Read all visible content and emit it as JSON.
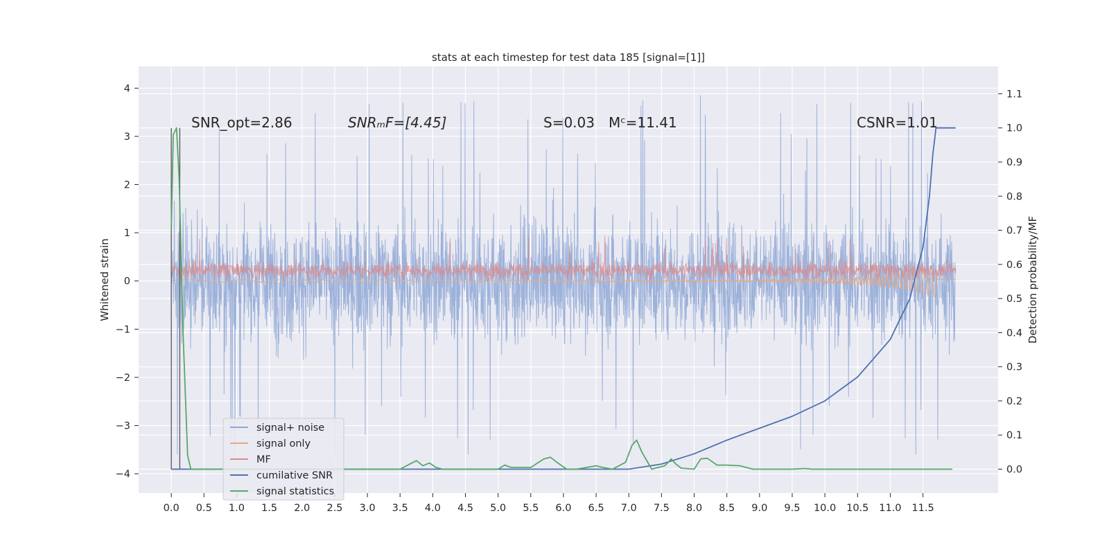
{
  "chart_data": {
    "type": "line",
    "title": "stats at each timestep for test data 185 [signal=[1]]",
    "ylabel_left": "Whitened strain",
    "ylabel_right": "Detection probability/MF",
    "xlim": [
      -0.5,
      12.65
    ],
    "ylim_left": [
      -4.4,
      4.45
    ],
    "ylim_right": [
      -0.07,
      1.18
    ],
    "grid": true,
    "x_ticks": [
      "0.0",
      "0.5",
      "1.0",
      "1.5",
      "2.0",
      "2.5",
      "3.0",
      "3.5",
      "4.0",
      "4.5",
      "5.0",
      "5.5",
      "6.0",
      "6.5",
      "7.0",
      "7.5",
      "8.0",
      "8.5",
      "9.0",
      "9.5",
      "10.0",
      "10.5",
      "11.0",
      "11.5"
    ],
    "y_ticks_left": [
      "4",
      "3",
      "2",
      "1",
      "0",
      "−1",
      "−2",
      "−3",
      "−4"
    ],
    "y_ticks_right": [
      "1.1",
      "1.0",
      "0.9",
      "0.8",
      "0.7",
      "0.6",
      "0.5",
      "0.4",
      "0.3",
      "0.2",
      "0.1",
      "0.0"
    ],
    "annotations": {
      "snr_opt": "SNR_opt=2.86",
      "snr_mf": "SNRₘF=[4.45]",
      "stat": "S=0.03",
      "mc": "Mᶜ=11.41",
      "csnr": "CSNR=1.01"
    },
    "legend": {
      "placement": "lower-left",
      "entries": [
        {
          "label": "signal+ noise",
          "color": "#8fa8d6"
        },
        {
          "label": "signal only",
          "color": "#e0a98a"
        },
        {
          "label": "MF",
          "color": "#d98a8a"
        },
        {
          "label": "cumilative SNR",
          "color": "#4c72b0"
        },
        {
          "label": "signal statistics",
          "color": "#55a868"
        }
      ]
    },
    "series": [
      {
        "name": "signal+ noise",
        "axis": "left",
        "x_range": [
          0.0,
          12.0
        ],
        "description_values": {
          "typical_low": -2.0,
          "typical_high": 2.0,
          "min": -3.6,
          "max": 4.1
        }
      },
      {
        "name": "signal only",
        "axis": "left",
        "x_range": [
          0.0,
          12.0
        ],
        "values_note": "near 0, grows to ±0.35 near 11.6"
      },
      {
        "name": "MF",
        "axis": "left",
        "x_range": [
          0.0,
          12.0
        ],
        "typical_range": [
          0.0,
          0.6
        ]
      },
      {
        "name": "cumilative SNR",
        "axis": "right",
        "x": [
          0.0,
          7.0,
          7.5,
          8.0,
          8.5,
          9.0,
          9.5,
          10.0,
          10.5,
          11.0,
          11.3,
          11.5,
          11.6,
          11.65,
          11.7,
          12.0
        ],
        "y": [
          0.0,
          0.0,
          0.015,
          0.045,
          0.085,
          0.12,
          0.155,
          0.2,
          0.27,
          0.38,
          0.5,
          0.65,
          0.8,
          0.92,
          1.0,
          1.0
        ]
      },
      {
        "name": "signal statistics",
        "axis": "right",
        "x": [
          0.0,
          0.03,
          0.08,
          0.12,
          0.18,
          0.25,
          0.3,
          0.5,
          3.5,
          3.65,
          3.75,
          3.85,
          3.95,
          4.05,
          4.15,
          4.3,
          5.0,
          5.1,
          5.2,
          5.5,
          5.7,
          5.8,
          5.9,
          6.05,
          6.2,
          6.5,
          6.6,
          6.75,
          6.95,
          7.05,
          7.12,
          7.2,
          7.35,
          7.55,
          7.65,
          7.72,
          7.8,
          8.0,
          8.1,
          8.2,
          8.35,
          8.5,
          8.7,
          8.9,
          9.5,
          9.7,
          9.8,
          10.0,
          11.0,
          11.95
        ],
        "y": [
          0.7,
          0.98,
          1.0,
          0.85,
          0.4,
          0.04,
          0.0,
          0.0,
          0.0,
          0.015,
          0.025,
          0.01,
          0.018,
          0.005,
          0.0,
          0.0,
          0.0,
          0.012,
          0.005,
          0.005,
          0.03,
          0.035,
          0.02,
          0.0,
          0.0,
          0.01,
          0.005,
          0.0,
          0.02,
          0.07,
          0.085,
          0.05,
          0.0,
          0.01,
          0.03,
          0.015,
          0.003,
          0.0,
          0.03,
          0.032,
          0.012,
          0.012,
          0.01,
          0.0,
          0.0,
          0.002,
          0.0,
          0.0,
          0.0,
          0.0
        ]
      }
    ]
  }
}
